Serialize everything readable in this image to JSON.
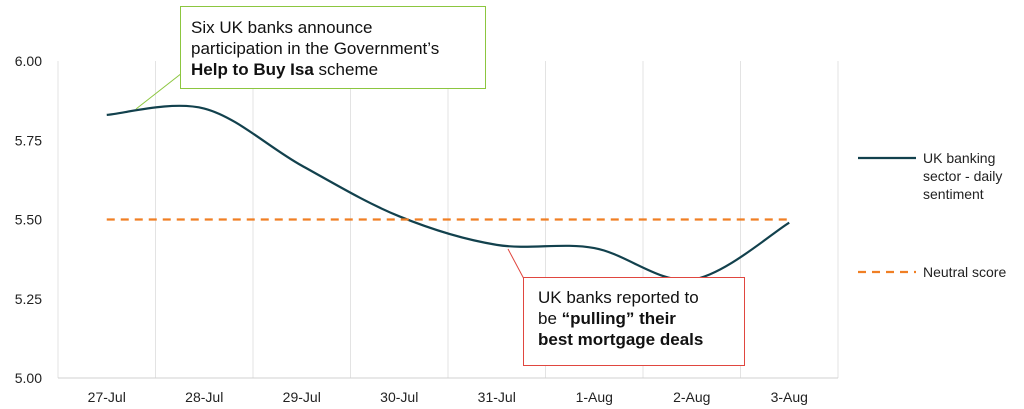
{
  "chart_data": {
    "type": "line",
    "categories": [
      "27-Jul",
      "28-Jul",
      "29-Jul",
      "30-Jul",
      "31-Jul",
      "1-Aug",
      "2-Aug",
      "3-Aug"
    ],
    "ylim": [
      5.0,
      6.0
    ],
    "yticks": [
      "5.00",
      "5.25",
      "5.50",
      "5.75",
      "6.00"
    ],
    "grid": "vertical",
    "legend_position": "right",
    "series": [
      {
        "name": "UK banking sector - daily sentiment",
        "legend_lines": [
          "UK banking",
          "sector - daily",
          "sentiment"
        ],
        "values": [
          5.83,
          5.85,
          5.67,
          5.51,
          5.42,
          5.41,
          5.31,
          5.49
        ],
        "color": "#12414d",
        "style": "solid"
      },
      {
        "name": "Neutral score",
        "legend_lines": [
          "Neutral score"
        ],
        "values": [
          5.5,
          5.5,
          5.5,
          5.5,
          5.5,
          5.5,
          5.5,
          5.5
        ],
        "color": "#f07f24",
        "style": "dashed"
      }
    ],
    "annotations": {
      "top": {
        "line1": "Six UK banks announce",
        "line2": "participation in the Government’s",
        "bold": "Help to Buy Isa",
        "after_bold": " scheme",
        "border_color": "#8cc63f",
        "points_to": "27-Jul"
      },
      "bottom": {
        "line1": "UK banks reported to",
        "line2_prefix": "be ",
        "line2_bold": "“pulling” their",
        "line3_bold": "best mortgage deals",
        "border_color": "#e0463f",
        "points_to": "31-Jul"
      }
    }
  }
}
